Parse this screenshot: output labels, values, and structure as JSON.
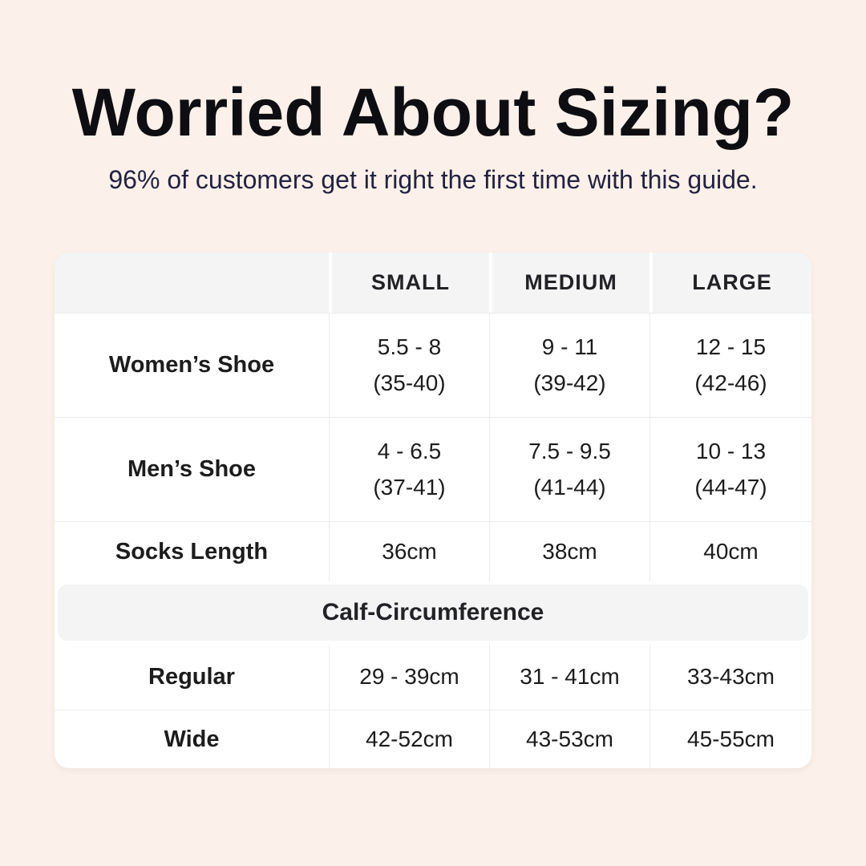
{
  "page": {
    "title": "Worried About Sizing?",
    "subtitle": "96% of customers get it right the first time with this guide.",
    "colors": {
      "background": "#fcf1ea",
      "title_text": "#0e0e12",
      "subtitle_text": "#232240",
      "table_background": "#ffffff",
      "header_band": "#f4f4f5",
      "table_text": "#1c1c1c",
      "divider": "#ececec"
    }
  },
  "table": {
    "columns": [
      "SMALL",
      "MEDIUM",
      "LARGE"
    ],
    "rows": [
      {
        "label": "Women’s Shoe",
        "cells": [
          {
            "main": "5.5 - 8",
            "sub": "(35-40)"
          },
          {
            "main": "9 - 11",
            "sub": "(39-42)"
          },
          {
            "main": "12 - 15",
            "sub": "(42-46)"
          }
        ]
      },
      {
        "label": "Men’s Shoe",
        "cells": [
          {
            "main": "4 - 6.5",
            "sub": "(37-41)"
          },
          {
            "main": "7.5 - 9.5",
            "sub": "(41-44)"
          },
          {
            "main": "10 - 13",
            "sub": "(44-47)"
          }
        ]
      },
      {
        "label": "Socks Length",
        "cells": [
          {
            "main": "36cm"
          },
          {
            "main": "38cm"
          },
          {
            "main": "40cm"
          }
        ]
      }
    ],
    "section_header": "Calf-Circumference",
    "calf_rows": [
      {
        "label": "Regular",
        "cells": [
          {
            "main": "29 - 39cm"
          },
          {
            "main": "31 - 41cm"
          },
          {
            "main": "33-43cm"
          }
        ]
      },
      {
        "label": "Wide",
        "cells": [
          {
            "main": "42-52cm"
          },
          {
            "main": "43-53cm"
          },
          {
            "main": "45-55cm"
          }
        ]
      }
    ]
  }
}
